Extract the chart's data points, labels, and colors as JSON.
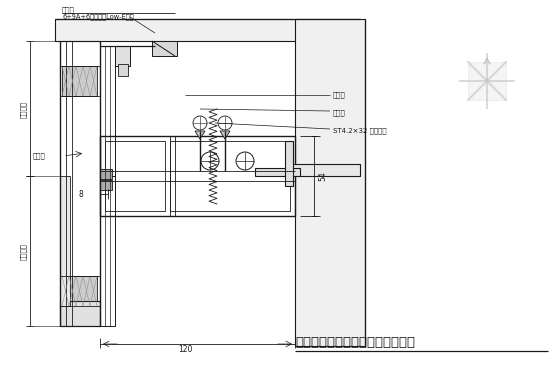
{
  "title": "某明框玻璃幕墙（八）纵剖节点图",
  "bg_color": "#ffffff",
  "line_color": "#1a1a1a",
  "label_top1": "玻璃料",
  "label_top2": "6+9A+6钢化中空Low-E玻璃",
  "label_left1": "分格尺寸",
  "label_left2": "分格尺寸",
  "label_mid1": "密封胶",
  "label_right1": "密封条",
  "label_right2": "密封条",
  "label_right3": "ST4.2×32 自钻螺钉",
  "dim_8": "8",
  "dim_54": "54",
  "dim_120": "120",
  "fig_width": 5.6,
  "fig_height": 3.71,
  "dpi": 100
}
